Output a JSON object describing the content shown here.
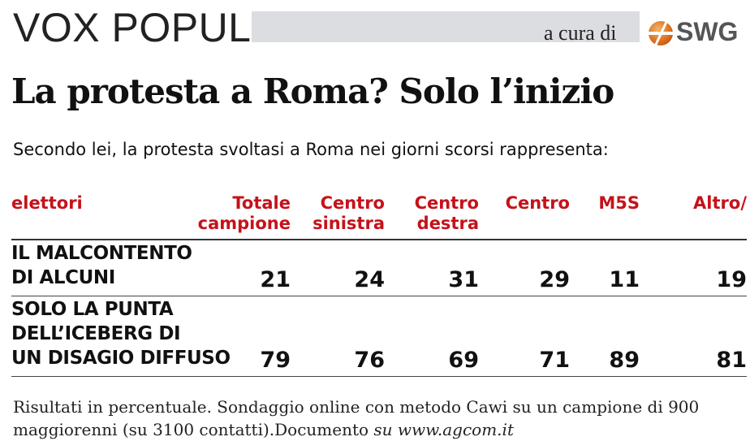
{
  "header": {
    "brand": "VOX POPULI",
    "credit": "a cura di",
    "logo_text": "SWG"
  },
  "title": "La protesta a Roma? Solo l’inizio",
  "subtitle": "Secondo lei, la protesta svoltasi a Roma nei giorni scorsi rappresenta:",
  "table": {
    "row_header": "elettori",
    "columns": [
      {
        "line1": "Totale",
        "line2": "campione"
      },
      {
        "line1": "Centro",
        "line2": "sinistra"
      },
      {
        "line1": "Centro",
        "line2": "destra"
      },
      {
        "line1": "Centro",
        "line2": ""
      },
      {
        "line1": "M5S",
        "line2": ""
      },
      {
        "line1": "Altro/",
        "line2": ""
      }
    ],
    "rows": [
      {
        "label_lines": [
          "IL MALCONTENTO",
          "DI ALCUNI"
        ],
        "values": [
          "21",
          "24",
          "31",
          "29",
          "11",
          "19"
        ]
      },
      {
        "label_lines": [
          "SOLO LA PUNTA",
          "DELL’ICEBERG DI",
          "UN DISAGIO DIFFUSO"
        ],
        "values": [
          "79",
          "76",
          "69",
          "71",
          "89",
          "81"
        ]
      }
    ]
  },
  "footer": {
    "text": "Risultati in percentuale. Sondaggio online con metodo Cawi su un campione di 900 maggiorenni (su 3100 contatti).Documento ",
    "link": "su www.agcom.it"
  },
  "colors": {
    "accent": "#c5121a",
    "bar": "#dcdde1"
  }
}
